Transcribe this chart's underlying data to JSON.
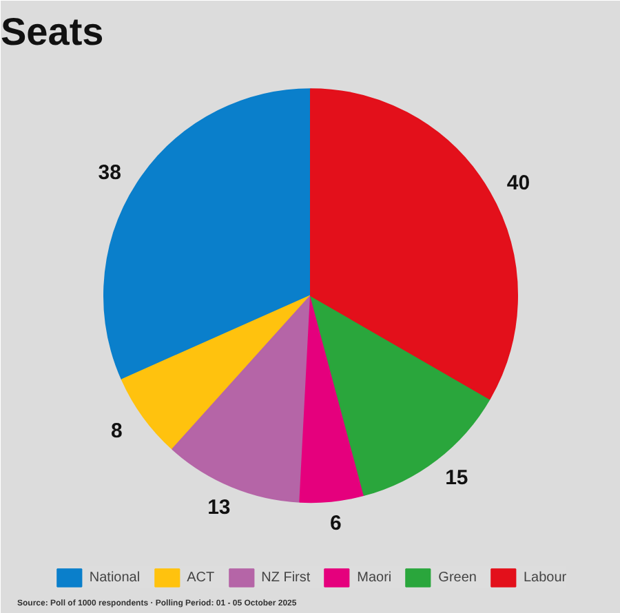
{
  "chart_data": {
    "type": "pie",
    "title": "Seats",
    "categories": [
      "National",
      "ACT",
      "NZ First",
      "Maori",
      "Green",
      "Labour"
    ],
    "values": [
      38,
      8,
      13,
      6,
      15,
      40
    ],
    "colors": [
      "#0a7fcb",
      "#ffc20e",
      "#b565a7",
      "#e5007d",
      "#2aa63c",
      "#e3101b"
    ],
    "data_labels": true,
    "legend": "bottom",
    "annotations": [
      "Source: Poll of 1000 respondents · Polling Period: 01 - 05 October 2025"
    ]
  }
}
